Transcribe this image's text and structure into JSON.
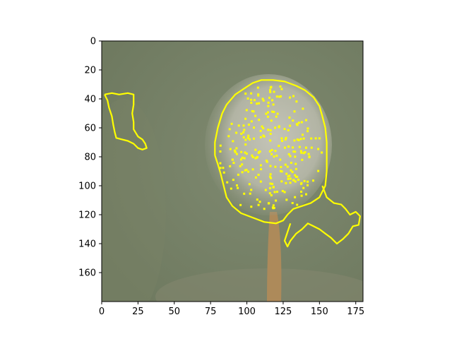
{
  "image_panel": {
    "extent": {
      "x": [
        0,
        180
      ],
      "y": [
        0,
        180
      ]
    },
    "x_ticks": [
      0,
      25,
      50,
      75,
      100,
      125,
      150,
      175
    ],
    "y_ticks": [
      0,
      20,
      40,
      60,
      80,
      100,
      120,
      140,
      160
    ],
    "overlay": {
      "color": "#ffff00",
      "contours": [
        {
          "name": "left-patch",
          "points": [
            [
              2,
              37
            ],
            [
              7,
              36
            ],
            [
              12,
              37
            ],
            [
              18,
              36
            ],
            [
              22,
              37
            ],
            [
              22,
              44
            ],
            [
              21,
              50
            ],
            [
              22,
              56
            ],
            [
              22,
              61
            ],
            [
              25,
              66
            ],
            [
              28,
              68
            ],
            [
              30,
              71
            ],
            [
              31,
              74
            ],
            [
              28,
              75
            ],
            [
              25,
              74
            ],
            [
              22,
              71
            ],
            [
              18,
              69
            ],
            [
              14,
              68
            ],
            [
              10,
              67
            ],
            [
              9,
              63
            ],
            [
              8,
              58
            ],
            [
              7,
              52
            ],
            [
              5,
              46
            ],
            [
              4,
              41
            ],
            [
              2,
              37
            ]
          ]
        },
        {
          "name": "dandelion-head",
          "points": [
            [
              78,
              79
            ],
            [
              78,
              70
            ],
            [
              80,
              60
            ],
            [
              83,
              50
            ],
            [
              86,
              44
            ],
            [
              92,
              37
            ],
            [
              98,
              33
            ],
            [
              104,
              29
            ],
            [
              110,
              27
            ],
            [
              118,
              27
            ],
            [
              126,
              28
            ],
            [
              134,
              31
            ],
            [
              140,
              34
            ],
            [
              146,
              39
            ],
            [
              150,
              45
            ],
            [
              152,
              52
            ],
            [
              154,
              60
            ],
            [
              155,
              70
            ],
            [
              155,
              80
            ],
            [
              155,
              90
            ],
            [
              154,
              100
            ],
            [
              150,
              108
            ],
            [
              144,
              112
            ],
            [
              138,
              114
            ],
            [
              132,
              116
            ],
            [
              128,
              120
            ],
            [
              125,
              124
            ],
            [
              120,
              126
            ],
            [
              112,
              125
            ],
            [
              104,
              122
            ],
            [
              96,
              119
            ],
            [
              90,
              114
            ],
            [
              86,
              108
            ],
            [
              84,
              100
            ],
            [
              82,
              92
            ],
            [
              80,
              85
            ],
            [
              78,
              79
            ]
          ]
        },
        {
          "name": "right-extension",
          "points": [
            [
              152,
              100
            ],
            [
              155,
              108
            ],
            [
              160,
              112
            ],
            [
              165,
              113
            ],
            [
              168,
              116
            ],
            [
              171,
              120
            ],
            [
              175,
              118
            ],
            [
              178,
              121
            ],
            [
              177,
              127
            ],
            [
              173,
              128
            ],
            [
              170,
              133
            ],
            [
              166,
              137
            ],
            [
              162,
              140
            ],
            [
              158,
              136
            ],
            [
              154,
              133
            ],
            [
              150,
              130
            ],
            [
              146,
              128
            ],
            [
              142,
              126
            ],
            [
              138,
              130
            ],
            [
              134,
              133
            ],
            [
              130,
              138
            ],
            [
              128,
              142
            ],
            [
              126,
              138
            ],
            [
              128,
              132
            ],
            [
              130,
              126
            ]
          ]
        }
      ]
    }
  }
}
